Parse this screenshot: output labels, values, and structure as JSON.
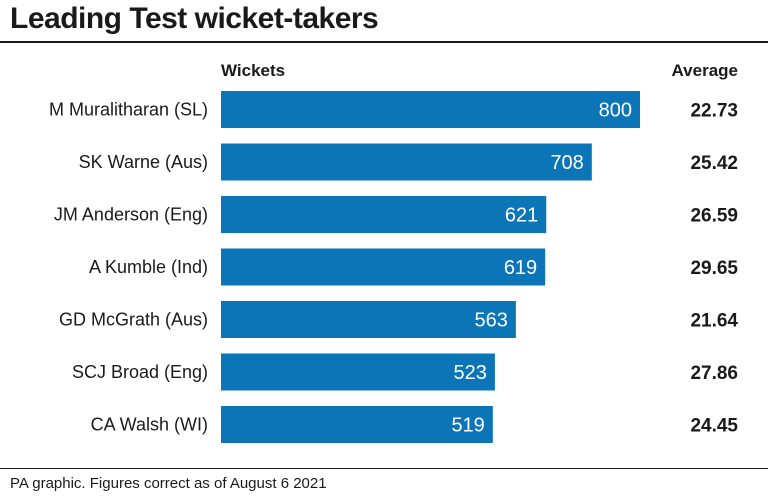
{
  "title": "Leading Test wicket-takers",
  "footer": "PA graphic. Figures correct as of August 6 2021",
  "colors": {
    "bar": "#0c75b8",
    "bar_label": "#ffffff",
    "text": "#1a1a1a"
  },
  "chart_data": {
    "type": "bar",
    "orientation": "horizontal",
    "value_header": "Wickets",
    "secondary_header": "Average",
    "categories": [
      "M Muralitharan (SL)",
      "SK Warne (Aus)",
      "JM Anderson (Eng)",
      "A Kumble (Ind)",
      "GD McGrath (Aus)",
      "SCJ Broad (Eng)",
      "CA Walsh (WI)"
    ],
    "series": [
      {
        "values": [
          800,
          708,
          621,
          619,
          563,
          523,
          519
        ]
      }
    ],
    "averages": [
      "22.73",
      "25.42",
      "26.59",
      "29.65",
      "21.64",
      "27.86",
      "24.45"
    ],
    "xlim": [
      0,
      800
    ],
    "grid": false,
    "legend": "none"
  }
}
